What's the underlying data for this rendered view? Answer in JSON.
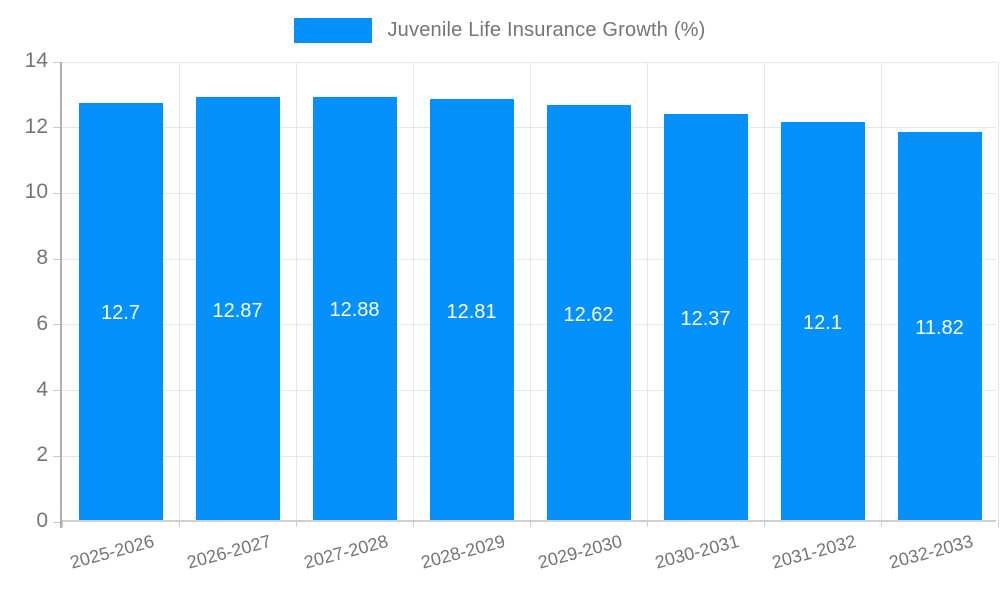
{
  "legend": {
    "label": "Juvenile Life Insurance Growth (%)"
  },
  "chart_data": {
    "type": "bar",
    "title": "Juvenile Life Insurance Growth (%)",
    "categories": [
      "2025-2026",
      "2026-2027",
      "2027-2028",
      "2028-2029",
      "2029-2030",
      "2030-2031",
      "2031-2032",
      "2032-2033"
    ],
    "values": [
      12.7,
      12.87,
      12.88,
      12.81,
      12.62,
      12.37,
      12.1,
      11.82
    ],
    "value_labels": [
      "12.7",
      "12.87",
      "12.88",
      "12.81",
      "12.62",
      "12.37",
      "12.1",
      "11.82"
    ],
    "xlabel": "",
    "ylabel": "",
    "ylim": [
      0,
      14
    ],
    "yticks": [
      0,
      2,
      4,
      6,
      8,
      10,
      12,
      14
    ],
    "grid": true,
    "legend_position": "top",
    "colors": {
      "bar": "#0591fc",
      "value_label": "#ffffff",
      "axis_text": "#757575",
      "gridline": "#e6e6e6",
      "y_axis_line": "#b0b0b0",
      "x_axis_line": "#cfcfcf",
      "tick_mark": "#cccccc"
    }
  }
}
